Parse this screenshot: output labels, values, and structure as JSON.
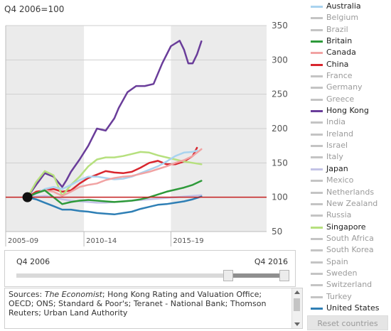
{
  "subtitle": "Q4 2006=100",
  "slider": {
    "start_label": "Q4 2006",
    "end_label": "Q4 2016"
  },
  "sources": {
    "prefix": "Sources: ",
    "italic": "The Economist",
    "rest": "; Hong Kong Rating and Valuation Office; OECD; ONS; Standard & Poor's; Teranet - National Bank; Thomson Reuters; Urban Land Authority"
  },
  "reset_label": "Reset countries",
  "legend": [
    {
      "label": "Australia",
      "color": "#a9d3ef",
      "active": true
    },
    {
      "label": "Belgium",
      "color": "#c4c4c4",
      "active": false
    },
    {
      "label": "Brazil",
      "color": "#c4c4c4",
      "active": false
    },
    {
      "label": "Britain",
      "color": "#2e9a3a",
      "active": true
    },
    {
      "label": "Canada",
      "color": "#f1a3a3",
      "active": true
    },
    {
      "label": "China",
      "color": "#d8262e",
      "active": true
    },
    {
      "label": "France",
      "color": "#c4c4c4",
      "active": false
    },
    {
      "label": "Germany",
      "color": "#c4c4c4",
      "active": false
    },
    {
      "label": "Greece",
      "color": "#c4c4c4",
      "active": false
    },
    {
      "label": "Hong Kong",
      "color": "#6a3d9a",
      "active": true
    },
    {
      "label": "India",
      "color": "#c4c4c4",
      "active": false
    },
    {
      "label": "Ireland",
      "color": "#c4c4c4",
      "active": false
    },
    {
      "label": "Israel",
      "color": "#c4c4c4",
      "active": false
    },
    {
      "label": "Italy",
      "color": "#c4c4c4",
      "active": false
    },
    {
      "label": "Japan",
      "color": "#c3c3e6",
      "active": true
    },
    {
      "label": "Mexico",
      "color": "#c4c4c4",
      "active": false
    },
    {
      "label": "Netherlands",
      "color": "#c4c4c4",
      "active": false
    },
    {
      "label": "New Zealand",
      "color": "#c4c4c4",
      "active": false
    },
    {
      "label": "Russia",
      "color": "#c4c4c4",
      "active": false
    },
    {
      "label": "Singapore",
      "color": "#b6e07e",
      "active": true
    },
    {
      "label": "South Africa",
      "color": "#c4c4c4",
      "active": false
    },
    {
      "label": "South Korea",
      "color": "#c4c4c4",
      "active": false
    },
    {
      "label": "Spain",
      "color": "#c4c4c4",
      "active": false
    },
    {
      "label": "Sweden",
      "color": "#c4c4c4",
      "active": false
    },
    {
      "label": "Switzerland",
      "color": "#c4c4c4",
      "active": false
    },
    {
      "label": "Turkey",
      "color": "#c4c4c4",
      "active": false
    },
    {
      "label": "United States",
      "color": "#2f7fb5",
      "active": true
    }
  ],
  "chart_data": {
    "type": "line",
    "ylim": [
      50,
      350
    ],
    "yticks": [
      50,
      100,
      150,
      200,
      250,
      300,
      350
    ],
    "xlim": [
      2005.5,
      2020.5
    ],
    "period_labels": [
      {
        "label": "2005–09",
        "start": 2005.5,
        "end": 2010.0
      },
      {
        "label": "2010–14",
        "start": 2010.0,
        "end": 2015.0
      },
      {
        "label": "2015–19",
        "start": 2015.0,
        "end": 2020.5
      }
    ],
    "baseline": 100,
    "baseline_color": "#c41e1e",
    "base_point": {
      "x": 2006.75,
      "y": 100
    },
    "series": [
      {
        "name": "Hong Kong",
        "color": "#6a3d9a",
        "x": [
          2006.75,
          2007.25,
          2007.75,
          2008.25,
          2008.75,
          2009.0,
          2009.25,
          2009.75,
          2010.25,
          2010.75,
          2011.25,
          2011.75,
          2012.0,
          2012.5,
          2013.0,
          2013.5,
          2014.0,
          2014.5,
          2015.0,
          2015.5,
          2015.75,
          2016.0,
          2016.25,
          2016.5,
          2016.75
        ],
        "y": [
          100,
          118,
          135,
          130,
          115,
          125,
          137,
          155,
          175,
          200,
          197,
          215,
          230,
          253,
          262,
          262,
          265,
          295,
          320,
          328,
          315,
          295,
          295,
          308,
          327
        ]
      },
      {
        "name": "China",
        "color": "#d8262e",
        "x": [
          2006.75,
          2007.25,
          2007.75,
          2008.25,
          2008.75,
          2009.25,
          2009.75,
          2010.25,
          2010.75,
          2011.25,
          2011.75,
          2012.25,
          2012.75,
          2013.25,
          2013.75,
          2014.25,
          2014.75,
          2015.25,
          2015.75,
          2016.25,
          2016.5
        ],
        "y": [
          100,
          108,
          110,
          112,
          108,
          110,
          120,
          128,
          133,
          138,
          136,
          135,
          137,
          143,
          150,
          153,
          148,
          148,
          152,
          160,
          172
        ]
      },
      {
        "name": "Singapore",
        "color": "#b6e07e",
        "x": [
          2006.75,
          2007.25,
          2007.75,
          2008.25,
          2008.75,
          2009.25,
          2009.75,
          2010.25,
          2010.75,
          2011.25,
          2011.75,
          2012.25,
          2012.75,
          2013.25,
          2013.75,
          2014.25,
          2014.75,
          2015.25,
          2015.75,
          2016.25,
          2016.75
        ],
        "y": [
          100,
          122,
          138,
          132,
          102,
          118,
          130,
          145,
          155,
          158,
          158,
          160,
          163,
          166,
          165,
          161,
          158,
          155,
          152,
          150,
          148
        ]
      },
      {
        "name": "Australia",
        "color": "#a9d3ef",
        "x": [
          2006.75,
          2007.25,
          2007.75,
          2008.25,
          2008.75,
          2009.25,
          2009.75,
          2010.25,
          2010.75,
          2011.25,
          2011.75,
          2012.25,
          2012.75,
          2013.25,
          2013.75,
          2014.25,
          2014.75,
          2015.25,
          2015.75,
          2016.25,
          2016.5
        ],
        "y": [
          100,
          105,
          112,
          115,
          112,
          118,
          125,
          130,
          130,
          128,
          126,
          127,
          130,
          135,
          140,
          145,
          152,
          160,
          165,
          166,
          168
        ]
      },
      {
        "name": "Canada",
        "color": "#f1a3a3",
        "x": [
          2006.75,
          2007.25,
          2007.75,
          2008.25,
          2008.75,
          2009.25,
          2009.75,
          2010.25,
          2010.75,
          2011.25,
          2011.75,
          2012.25,
          2012.75,
          2013.25,
          2013.75,
          2014.25,
          2014.75,
          2015.25,
          2015.75,
          2016.25,
          2016.75
        ],
        "y": [
          100,
          106,
          110,
          108,
          102,
          108,
          115,
          118,
          120,
          125,
          128,
          130,
          131,
          134,
          137,
          141,
          145,
          150,
          154,
          160,
          170
        ]
      },
      {
        "name": "Japan",
        "color": "#c3c3e6",
        "x": [
          2006.75,
          2007.25,
          2007.75,
          2008.25,
          2008.75,
          2009.25,
          2009.75,
          2010.25,
          2010.75,
          2011.25,
          2011.75,
          2012.25,
          2012.75,
          2013.25,
          2013.75,
          2014.25,
          2014.75,
          2015.25,
          2015.75,
          2016.25,
          2016.75
        ],
        "y": [
          100,
          101,
          102,
          100,
          97,
          95,
          94,
          93,
          92,
          92,
          93,
          94,
          95,
          96,
          97,
          98,
          99,
          100,
          101,
          102,
          103
        ]
      },
      {
        "name": "Britain",
        "color": "#2e9a3a",
        "x": [
          2006.75,
          2007.25,
          2007.75,
          2008.25,
          2008.75,
          2009.25,
          2009.75,
          2010.25,
          2010.75,
          2011.25,
          2011.75,
          2012.25,
          2012.75,
          2013.25,
          2013.75,
          2014.25,
          2014.75,
          2015.25,
          2015.75,
          2016.25,
          2016.75
        ],
        "y": [
          100,
          106,
          110,
          100,
          90,
          93,
          95,
          96,
          95,
          94,
          93,
          94,
          95,
          97,
          100,
          104,
          108,
          111,
          114,
          118,
          124
        ]
      },
      {
        "name": "United States",
        "color": "#2f7fb5",
        "x": [
          2006.75,
          2007.25,
          2007.75,
          2008.25,
          2008.75,
          2009.25,
          2009.75,
          2010.25,
          2010.75,
          2011.25,
          2011.75,
          2012.25,
          2012.75,
          2013.25,
          2013.75,
          2014.25,
          2014.75,
          2015.25,
          2015.75,
          2016.25,
          2016.75
        ],
        "y": [
          100,
          97,
          92,
          87,
          82,
          82,
          80,
          79,
          77,
          76,
          75,
          77,
          79,
          83,
          86,
          89,
          90,
          92,
          94,
          97,
          101
        ]
      }
    ]
  }
}
